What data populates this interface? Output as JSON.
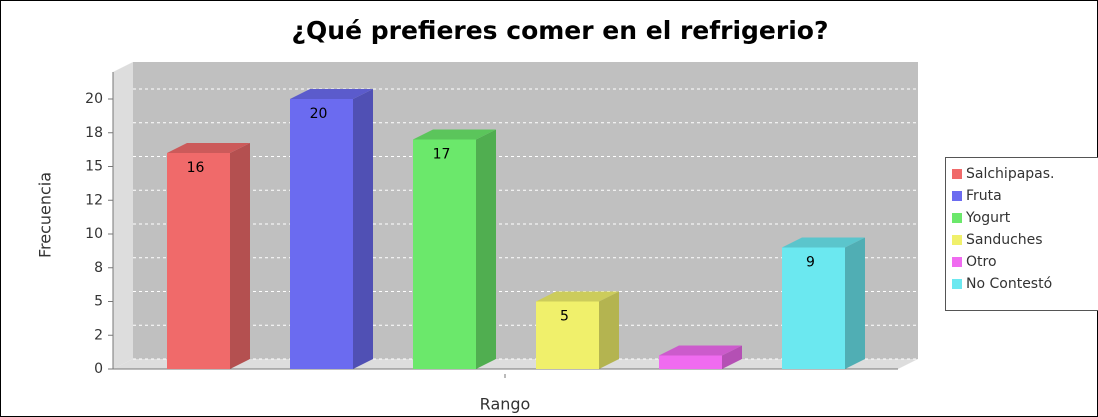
{
  "chart_data": {
    "type": "bar3d",
    "title": "¿Qué prefieres comer en el refrigerio?",
    "x_label": "Rango",
    "y_label": "Frecuencia",
    "categories": [
      null
    ],
    "series": [
      {
        "name": "Salchipapas.",
        "color": "#f06a6a",
        "values": [
          16
        ]
      },
      {
        "name": "Fruta",
        "color": "#6b6bf0",
        "values": [
          20
        ]
      },
      {
        "name": "Yogurt",
        "color": "#6be86b",
        "values": [
          17
        ]
      },
      {
        "name": "Sanduches",
        "color": "#f0f06b",
        "values": [
          5
        ]
      },
      {
        "name": "Otro",
        "color": "#f06bf0",
        "values": [
          1
        ]
      },
      {
        "name": "No Contestó",
        "color": "#6be8f0",
        "values": [
          9
        ]
      }
    ],
    "value_labels": [
      "16",
      "20",
      "17",
      "5",
      null,
      "9"
    ],
    "ylim": [
      0,
      22
    ],
    "yticks": [
      0,
      {
        "value": 2.5,
        "label": "2"
      },
      5,
      {
        "value": 7.5,
        "label": "8"
      },
      10,
      {
        "value": 12.5,
        "label": "12"
      },
      15,
      {
        "value": 17.5,
        "label": "18"
      },
      20
    ],
    "grid": true,
    "legend": "right"
  }
}
